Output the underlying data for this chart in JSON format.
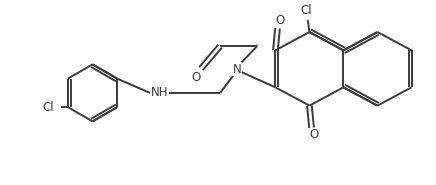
{
  "background_color": "#ffffff",
  "line_color": "#3a3a3a",
  "line_width": 1.4,
  "fig_width": 4.36,
  "fig_height": 1.85,
  "dpi": 100,
  "xlim": [
    0,
    10
  ],
  "ylim": [
    0,
    4.3
  ]
}
